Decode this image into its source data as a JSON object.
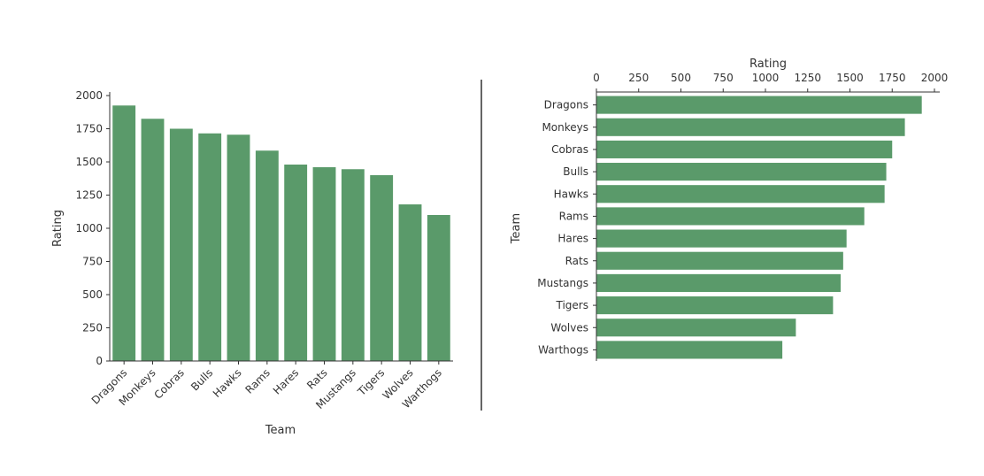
{
  "chart_data": [
    {
      "type": "bar",
      "orientation": "vertical",
      "categories": [
        "Dragons",
        "Monkeys",
        "Cobras",
        "Bulls",
        "Hawks",
        "Rams",
        "Hares",
        "Rats",
        "Mustangs",
        "Tigers",
        "Wolves",
        "Warthogs"
      ],
      "values": [
        1925,
        1825,
        1750,
        1715,
        1705,
        1585,
        1480,
        1460,
        1445,
        1400,
        1180,
        1100
      ],
      "xlabel": "Team",
      "ylabel": "Rating",
      "ylim": [
        0,
        2000
      ],
      "yticks": [
        0,
        250,
        500,
        750,
        1000,
        1250,
        1500,
        1750,
        2000
      ],
      "tick_label_rotation": 45,
      "color": "#5a9a6a",
      "grid": false
    },
    {
      "type": "bar",
      "orientation": "horizontal",
      "categories": [
        "Dragons",
        "Monkeys",
        "Cobras",
        "Bulls",
        "Hawks",
        "Rams",
        "Hares",
        "Rats",
        "Mustangs",
        "Tigers",
        "Wolves",
        "Warthogs"
      ],
      "values": [
        1925,
        1825,
        1750,
        1715,
        1705,
        1585,
        1480,
        1460,
        1445,
        1400,
        1180,
        1100
      ],
      "xlabel": "Rating",
      "xaxis_position": "top",
      "ylabel": "Team",
      "xlim": [
        0,
        2000
      ],
      "xticks": [
        0,
        250,
        500,
        750,
        1000,
        1250,
        1500,
        1750,
        2000
      ],
      "color": "#5a9a6a",
      "grid": false
    }
  ]
}
